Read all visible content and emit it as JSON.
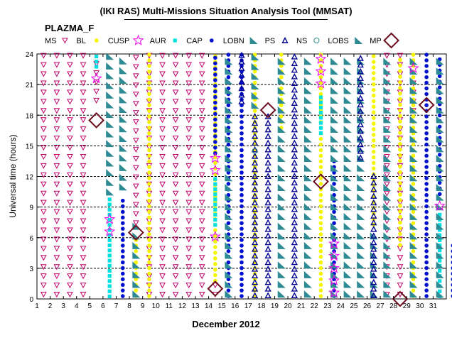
{
  "header": {
    "title": "(IKI RAS) Multi-Missions Situation Analysis Tool (MMSAT)",
    "instrument": "PLAZMA_F"
  },
  "legend": [
    {
      "code": "MS",
      "marker": "triangle-down-open",
      "color": "#c0006a"
    },
    {
      "code": "BL",
      "marker": "circle-filled",
      "color": "#f5f500"
    },
    {
      "code": "CUSP",
      "marker": "star-open",
      "color": "#ee00ee"
    },
    {
      "code": "AUR",
      "marker": "square-filled",
      "color": "#00e0e0"
    },
    {
      "code": "CAP",
      "marker": "circle-filled",
      "color": "#0010d0"
    },
    {
      "code": "LOBN",
      "marker": "wedge-filled",
      "color": "#2e8b94"
    },
    {
      "code": "PS",
      "marker": "triangle-up-open",
      "color": "#000090"
    },
    {
      "code": "NS",
      "marker": "circle-open",
      "color": "#2e8b8b"
    },
    {
      "code": "LOBS",
      "marker": "wedge-filled",
      "color": "#2e8b94"
    },
    {
      "code": "MP",
      "marker": "diamond-open",
      "color": "#6b0e1e"
    }
  ],
  "chart_data": {
    "type": "scatter",
    "title": "(IKI RAS) Multi-Missions Situation Analysis Tool (MMSAT)",
    "subtitle": "PLAZMA_F",
    "xlabel": "December 2012",
    "ylabel": "Universal time (hours)",
    "x_ticks": [
      "1",
      "2",
      "3",
      "4",
      "5",
      "6",
      "7",
      "8",
      "9",
      "10",
      "11",
      "12",
      "13",
      "14",
      "15",
      "16",
      "17",
      "18",
      "19",
      "20",
      "21",
      "22",
      "23",
      "24",
      "25",
      "26",
      "27",
      "28",
      "29",
      "30",
      "31"
    ],
    "y_ticks": [
      "0",
      "3",
      "6",
      "9",
      "12",
      "15",
      "18",
      "21",
      "24"
    ],
    "xlim": [
      1,
      32
    ],
    "ylim": [
      0,
      24
    ],
    "grid": "dashed horizontal every 3 hours",
    "series": [
      {
        "name": "MS",
        "segments": [
          {
            "day": 1.5,
            "from": 0,
            "to": 24
          },
          {
            "day": 2.5,
            "from": 0,
            "to": 24
          },
          {
            "day": 3.5,
            "from": 0,
            "to": 24
          },
          {
            "day": 4.5,
            "from": 0,
            "to": 24
          },
          {
            "day": 5.5,
            "from": 19,
            "to": 24
          },
          {
            "day": 8.5,
            "from": 7,
            "to": 24
          },
          {
            "day": 9.5,
            "from": 0,
            "to": 24
          },
          {
            "day": 10.5,
            "from": 0,
            "to": 24
          },
          {
            "day": 11.5,
            "from": 0,
            "to": 24
          },
          {
            "day": 12.5,
            "from": 0,
            "to": 24
          },
          {
            "day": 13.5,
            "from": 0,
            "to": 24
          },
          {
            "day": 14.5,
            "from": 0,
            "to": 1.5
          },
          {
            "day": 27.5,
            "from": 0,
            "to": 24
          },
          {
            "day": 28.5,
            "from": 0,
            "to": 24
          },
          {
            "day": 29.5,
            "from": 18,
            "to": 22
          }
        ]
      },
      {
        "name": "BL",
        "segments": [
          {
            "day": 8.5,
            "from": 0,
            "to": 6
          },
          {
            "day": 9.5,
            "from": 0,
            "to": 24
          },
          {
            "day": 14.5,
            "from": 1.5,
            "to": 24
          },
          {
            "day": 17.5,
            "from": 0,
            "to": 24
          },
          {
            "day": 19.5,
            "from": 16.5,
            "to": 24
          },
          {
            "day": 22.5,
            "from": 0,
            "to": 24
          },
          {
            "day": 26.5,
            "from": 7,
            "to": 24
          },
          {
            "day": 28.5,
            "from": 5,
            "to": 24
          },
          {
            "day": 29.5,
            "from": 0,
            "to": 24
          }
        ]
      },
      {
        "name": "CUSP",
        "segments": [
          {
            "day": 5.5,
            "from": 21,
            "to": 22
          },
          {
            "day": 6.5,
            "from": 6,
            "to": 8.5
          },
          {
            "day": 14.5,
            "from": 5.5,
            "to": 7
          },
          {
            "day": 14.5,
            "from": 12,
            "to": 14
          },
          {
            "day": 22.5,
            "from": 20.5,
            "to": 24
          },
          {
            "day": 23.5,
            "from": 0,
            "to": 6
          },
          {
            "day": 29.5,
            "from": 22,
            "to": 23.5
          },
          {
            "day": 31.5,
            "from": 8.5,
            "to": 10
          }
        ]
      },
      {
        "name": "AUR",
        "segments": [
          {
            "day": 5.5,
            "from": 22.5,
            "to": 24
          },
          {
            "day": 6.5,
            "from": 0,
            "to": 10
          },
          {
            "day": 14.5,
            "from": 7,
            "to": 12
          },
          {
            "day": 22.5,
            "from": 16,
            "to": 20
          },
          {
            "day": 31.5,
            "from": 0,
            "to": 8.5
          }
        ]
      },
      {
        "name": "CAP",
        "segments": [
          {
            "day": 7.5,
            "from": 0,
            "to": 10
          },
          {
            "day": 14.5,
            "from": 14,
            "to": 24
          },
          {
            "day": 15.5,
            "from": 0,
            "to": 24
          },
          {
            "day": 16.5,
            "from": 0,
            "to": 24
          },
          {
            "day": 23.5,
            "from": 0,
            "to": 14
          },
          {
            "day": 30.5,
            "from": 0,
            "to": 24
          },
          {
            "day": 31.5,
            "from": 10,
            "to": 24
          },
          {
            "day": 32.5,
            "from": 0,
            "to": 5.5
          }
        ]
      },
      {
        "name": "LOBN",
        "segments": [
          {
            "day": 6.5,
            "from": 10,
            "to": 24
          },
          {
            "day": 7.5,
            "from": 10.5,
            "to": 24
          },
          {
            "day": 8.5,
            "from": 0,
            "to": 7.5
          },
          {
            "day": 15.5,
            "from": 0,
            "to": 24
          },
          {
            "day": 17.5,
            "from": 18.5,
            "to": 24
          },
          {
            "day": 19.5,
            "from": 0,
            "to": 24
          },
          {
            "day": 21.5,
            "from": 0,
            "to": 24
          },
          {
            "day": 23.5,
            "from": 0,
            "to": 24
          },
          {
            "day": 24.5,
            "from": 0,
            "to": 24
          },
          {
            "day": 25.5,
            "from": 0,
            "to": 24
          },
          {
            "day": 26.5,
            "from": 0,
            "to": 7
          },
          {
            "day": 27.5,
            "from": 0,
            "to": 24
          },
          {
            "day": 29.5,
            "from": 0,
            "to": 24
          },
          {
            "day": 31.5,
            "from": 0,
            "to": 24
          }
        ]
      },
      {
        "name": "PS",
        "segments": [
          {
            "day": 16.5,
            "from": 19,
            "to": 24
          },
          {
            "day": 17.5,
            "from": 0,
            "to": 18.5
          },
          {
            "day": 18.5,
            "from": 0,
            "to": 18.5
          },
          {
            "day": 20.5,
            "from": 0,
            "to": 24
          },
          {
            "day": 25.5,
            "from": 13.5,
            "to": 24
          },
          {
            "day": 26.5,
            "from": 0,
            "to": 12.5
          }
        ]
      },
      {
        "name": "NS",
        "points": [
          {
            "day": 17.5,
            "hour": 14.5
          },
          {
            "day": 25.5,
            "hour": 17.5
          }
        ]
      },
      {
        "name": "MP",
        "points": [
          {
            "day": 5.5,
            "hour": 17.5
          },
          {
            "day": 8.5,
            "hour": 6.5
          },
          {
            "day": 14.5,
            "hour": 1
          },
          {
            "day": 18.5,
            "hour": 18.5
          },
          {
            "day": 22.5,
            "hour": 11.5
          },
          {
            "day": 28.5,
            "hour": 0
          },
          {
            "day": 30.5,
            "hour": 19
          }
        ]
      }
    ]
  }
}
